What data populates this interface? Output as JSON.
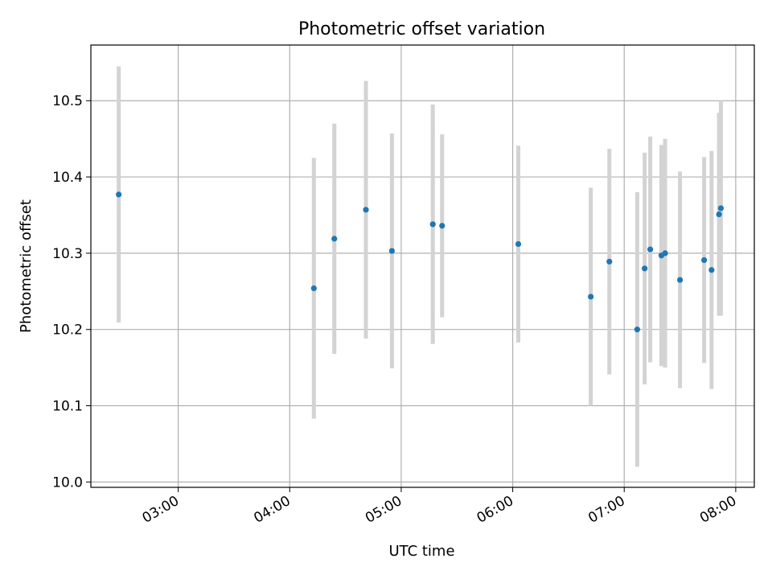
{
  "chart_data": {
    "type": "scatter",
    "title": "Photometric offset variation",
    "xlabel": "UTC time",
    "ylabel": "Photometric offset",
    "x_ticks": [
      "03:00",
      "04:00",
      "05:00",
      "06:00",
      "07:00",
      "08:00"
    ],
    "y_ticks": [
      "10.0",
      "10.1",
      "10.2",
      "10.3",
      "10.4",
      "10.5"
    ],
    "xlim": [
      "02:13",
      "08:10"
    ],
    "ylim": [
      9.993,
      10.573
    ],
    "grid": true,
    "point_color": "#1f77b4",
    "errorbar_color": "#d3d3d3",
    "series": [
      {
        "points": [
          {
            "x": "02:28",
            "y": 10.377,
            "err": 0.168
          },
          {
            "x": "04:13",
            "y": 10.254,
            "err": 0.171
          },
          {
            "x": "04:24",
            "y": 10.319,
            "err": 0.151
          },
          {
            "x": "04:41",
            "y": 10.357,
            "err": 0.169
          },
          {
            "x": "04:55",
            "y": 10.303,
            "err": 0.154
          },
          {
            "x": "05:17",
            "y": 10.338,
            "err": 0.157
          },
          {
            "x": "05:22",
            "y": 10.336,
            "err": 0.12
          },
          {
            "x": "06:03",
            "y": 10.312,
            "err": 0.129
          },
          {
            "x": "06:42",
            "y": 10.243,
            "err": 0.143
          },
          {
            "x": "06:52",
            "y": 10.289,
            "err": 0.148
          },
          {
            "x": "07:07",
            "y": 10.2,
            "err": 0.18
          },
          {
            "x": "07:11",
            "y": 10.28,
            "err": 0.152
          },
          {
            "x": "07:14",
            "y": 10.305,
            "err": 0.148
          },
          {
            "x": "07:20",
            "y": 10.297,
            "err": 0.145
          },
          {
            "x": "07:22",
            "y": 10.3,
            "err": 0.15
          },
          {
            "x": "07:30",
            "y": 10.265,
            "err": 0.142
          },
          {
            "x": "07:43",
            "y": 10.291,
            "err": 0.135
          },
          {
            "x": "07:47",
            "y": 10.278,
            "err": 0.156
          },
          {
            "x": "07:51",
            "y": 10.351,
            "err": 0.133
          },
          {
            "x": "07:52",
            "y": 10.359,
            "err": 0.141
          }
        ]
      }
    ]
  }
}
